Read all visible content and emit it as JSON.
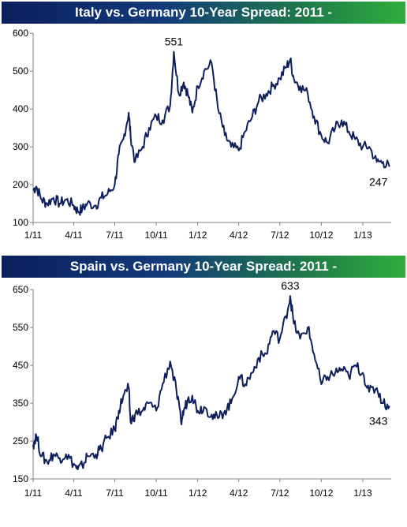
{
  "chart_data": [
    {
      "type": "line",
      "title": "Italy vs. Germany 10-Year Spread: 2011 -",
      "xlabel": "",
      "ylabel": "",
      "x_ticks": [
        "1/11",
        "4/11",
        "7/11",
        "10/11",
        "1/12",
        "4/12",
        "7/12",
        "10/12",
        "1/13"
      ],
      "y_ticks": [
        "100",
        "200",
        "300",
        "400",
        "500",
        "600"
      ],
      "ylim": [
        100,
        600
      ],
      "grid": false,
      "annotations": [
        {
          "text": "551",
          "x": "2011-11-09",
          "y": 551
        },
        {
          "text": "247",
          "x": "2013-03-01",
          "y": 247
        }
      ],
      "series": [
        {
          "x": [
            "2011-01-01",
            "2011-01-08",
            "2011-01-20",
            "2011-02-01",
            "2011-02-15",
            "2011-03-01",
            "2011-03-15",
            "2011-04-01",
            "2011-04-10",
            "2011-04-20",
            "2011-05-01",
            "2011-05-20",
            "2011-06-01",
            "2011-06-15",
            "2011-07-01",
            "2011-07-10",
            "2011-07-20",
            "2011-08-01",
            "2011-08-05",
            "2011-08-15",
            "2011-09-01",
            "2011-09-15",
            "2011-10-01",
            "2011-10-15",
            "2011-11-01",
            "2011-11-09",
            "2011-11-20",
            "2011-12-01",
            "2011-12-10",
            "2011-12-20",
            "2012-01-01",
            "2012-01-15",
            "2012-02-01",
            "2012-02-15",
            "2012-03-01",
            "2012-03-15",
            "2012-04-01",
            "2012-04-15",
            "2012-05-01",
            "2012-05-15",
            "2012-06-01",
            "2012-06-15",
            "2012-07-01",
            "2012-07-15",
            "2012-07-24",
            "2012-08-01",
            "2012-08-15",
            "2012-09-01",
            "2012-09-15",
            "2012-10-01",
            "2012-10-15",
            "2012-11-01",
            "2012-11-15",
            "2012-12-01",
            "2012-12-15",
            "2013-01-01",
            "2013-01-15",
            "2013-02-01",
            "2013-02-15",
            "2013-03-01"
          ],
          "values": [
            185,
            195,
            160,
            150,
            165,
            150,
            160,
            145,
            130,
            135,
            150,
            145,
            165,
            175,
            200,
            280,
            320,
            390,
            330,
            260,
            300,
            350,
            380,
            370,
            410,
            551,
            440,
            470,
            440,
            390,
            460,
            500,
            520,
            400,
            330,
            300,
            290,
            340,
            380,
            420,
            440,
            460,
            480,
            510,
            530,
            480,
            460,
            440,
            380,
            330,
            310,
            350,
            370,
            340,
            320,
            300,
            300,
            260,
            260,
            247
          ]
        }
      ]
    },
    {
      "type": "line",
      "title": "Spain vs. Germany 10-Year Spread: 2011 -",
      "xlabel": "",
      "ylabel": "",
      "x_ticks": [
        "1/11",
        "4/11",
        "7/11",
        "10/11",
        "1/12",
        "4/12",
        "7/12",
        "10/12",
        "1/13"
      ],
      "y_ticks": [
        "150",
        "250",
        "350",
        "450",
        "550",
        "650"
      ],
      "ylim": [
        150,
        650
      ],
      "grid": false,
      "annotations": [
        {
          "text": "633",
          "x": "2012-07-24",
          "y": 633
        },
        {
          "text": "343",
          "x": "2013-03-01",
          "y": 343
        }
      ],
      "series": [
        {
          "x": [
            "2011-01-01",
            "2011-01-08",
            "2011-01-20",
            "2011-02-01",
            "2011-02-15",
            "2011-03-01",
            "2011-03-15",
            "2011-04-01",
            "2011-04-10",
            "2011-04-20",
            "2011-05-01",
            "2011-05-20",
            "2011-06-01",
            "2011-06-15",
            "2011-07-01",
            "2011-07-10",
            "2011-07-20",
            "2011-08-01",
            "2011-08-05",
            "2011-08-15",
            "2011-09-01",
            "2011-09-15",
            "2011-10-01",
            "2011-10-15",
            "2011-11-01",
            "2011-11-15",
            "2011-11-25",
            "2011-12-01",
            "2011-12-10",
            "2011-12-20",
            "2012-01-01",
            "2012-01-15",
            "2012-02-01",
            "2012-02-15",
            "2012-03-01",
            "2012-03-15",
            "2012-04-01",
            "2012-04-15",
            "2012-05-01",
            "2012-05-15",
            "2012-06-01",
            "2012-06-15",
            "2012-07-01",
            "2012-07-15",
            "2012-07-24",
            "2012-08-01",
            "2012-08-15",
            "2012-09-01",
            "2012-09-15",
            "2012-10-01",
            "2012-10-15",
            "2012-11-01",
            "2012-11-15",
            "2012-12-01",
            "2012-12-15",
            "2013-01-01",
            "2013-01-15",
            "2013-02-01",
            "2013-02-15",
            "2013-03-01"
          ],
          "values": [
            240,
            265,
            210,
            195,
            215,
            205,
            215,
            190,
            175,
            185,
            210,
            215,
            230,
            260,
            280,
            330,
            370,
            390,
            300,
            320,
            330,
            350,
            330,
            400,
            460,
            380,
            300,
            330,
            360,
            370,
            330,
            340,
            320,
            310,
            330,
            350,
            420,
            400,
            430,
            470,
            480,
            540,
            520,
            580,
            633,
            560,
            520,
            550,
            480,
            400,
            420,
            430,
            440,
            420,
            450,
            430,
            380,
            390,
            350,
            343
          ]
        }
      ]
    }
  ]
}
